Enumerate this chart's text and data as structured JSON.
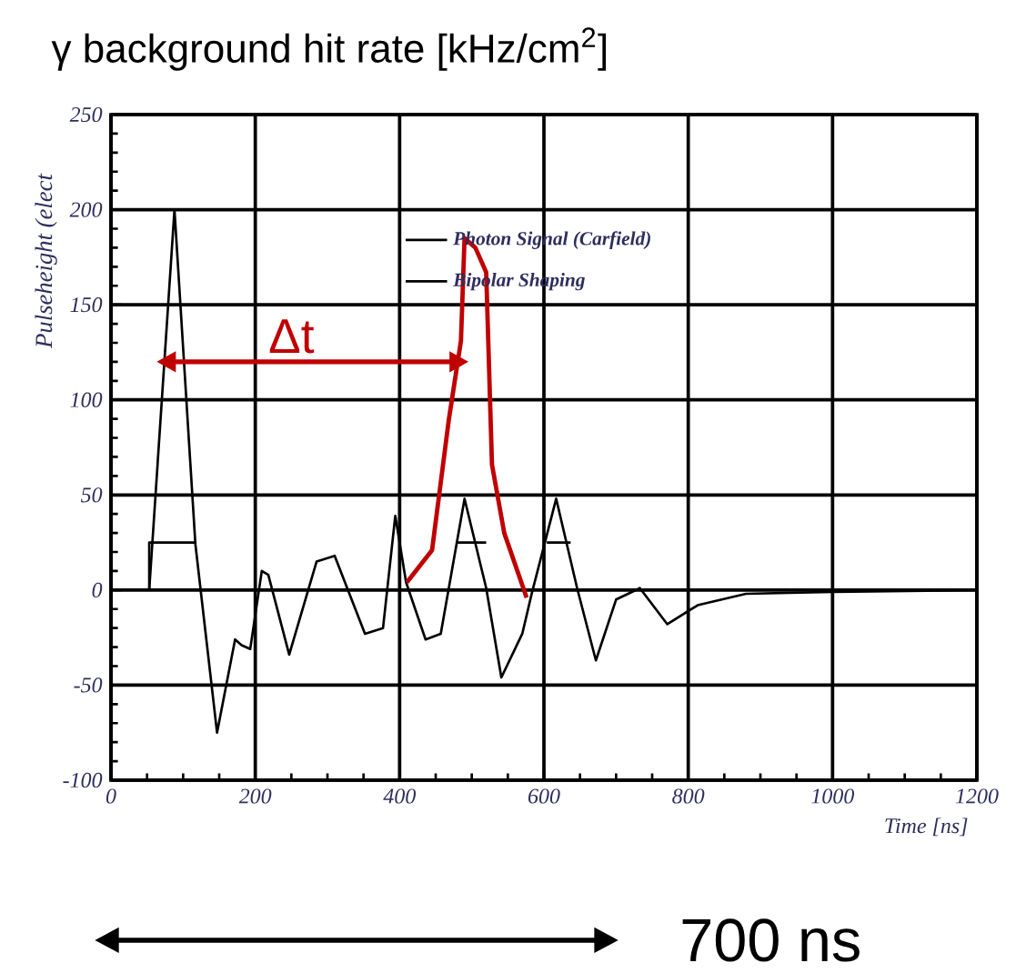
{
  "chart_data": {
    "type": "line",
    "title": "γ background hit rate [kHz/cm$^{2}$]",
    "ylabel": "Pulseheight (elect",
    "xlabel": "Time [ns]",
    "xlim": [
      0,
      1200
    ],
    "xticks": [
      0,
      200,
      400,
      600,
      800,
      1000,
      1200
    ],
    "ylim": [
      -100,
      250
    ],
    "yticks": [
      -100,
      -50,
      0,
      50,
      100,
      150,
      200,
      250
    ],
    "grid": true,
    "legend": "top",
    "series": [
      {
        "name": "Photon Signal (Carfield)",
        "color": "#000000",
        "x": [
          53,
          53,
          117,
          null,
          478,
          520,
          null,
          604,
          637
        ],
        "values": [
          0,
          25,
          25,
          null,
          25,
          25,
          null,
          25,
          25
        ]
      },
      {
        "name": "Bipolar Shaping",
        "color": "#000000",
        "x": [
          53,
          88,
          117,
          147,
          172,
          181,
          193,
          209,
          218,
          247,
          285,
          310,
          352,
          377,
          394,
          409,
          436,
          457,
          490,
          520,
          541,
          570,
          583,
          617,
          646,
          672,
          700,
          733,
          771,
          813,
          880,
          1000,
          1200
        ],
        "values": [
          0,
          200,
          24,
          -75,
          -26,
          -29,
          -31,
          10,
          8,
          -34,
          15,
          18,
          -23,
          -20,
          39,
          4,
          -26,
          -23,
          48,
          1,
          -46,
          -23,
          -2,
          48,
          1,
          -37,
          -5,
          1,
          -18,
          -8,
          -2,
          -1,
          0
        ]
      },
      {
        "color": "#c00000",
        "x": [
          410,
          445,
          468,
          485,
          490,
          505,
          520,
          528,
          545,
          576
        ],
        "values": [
          4,
          21,
          89,
          131,
          185,
          180,
          167,
          66,
          30,
          -4
        ]
      }
    ],
    "annotations": [
      "Δt",
      "700 ns"
    ]
  }
}
